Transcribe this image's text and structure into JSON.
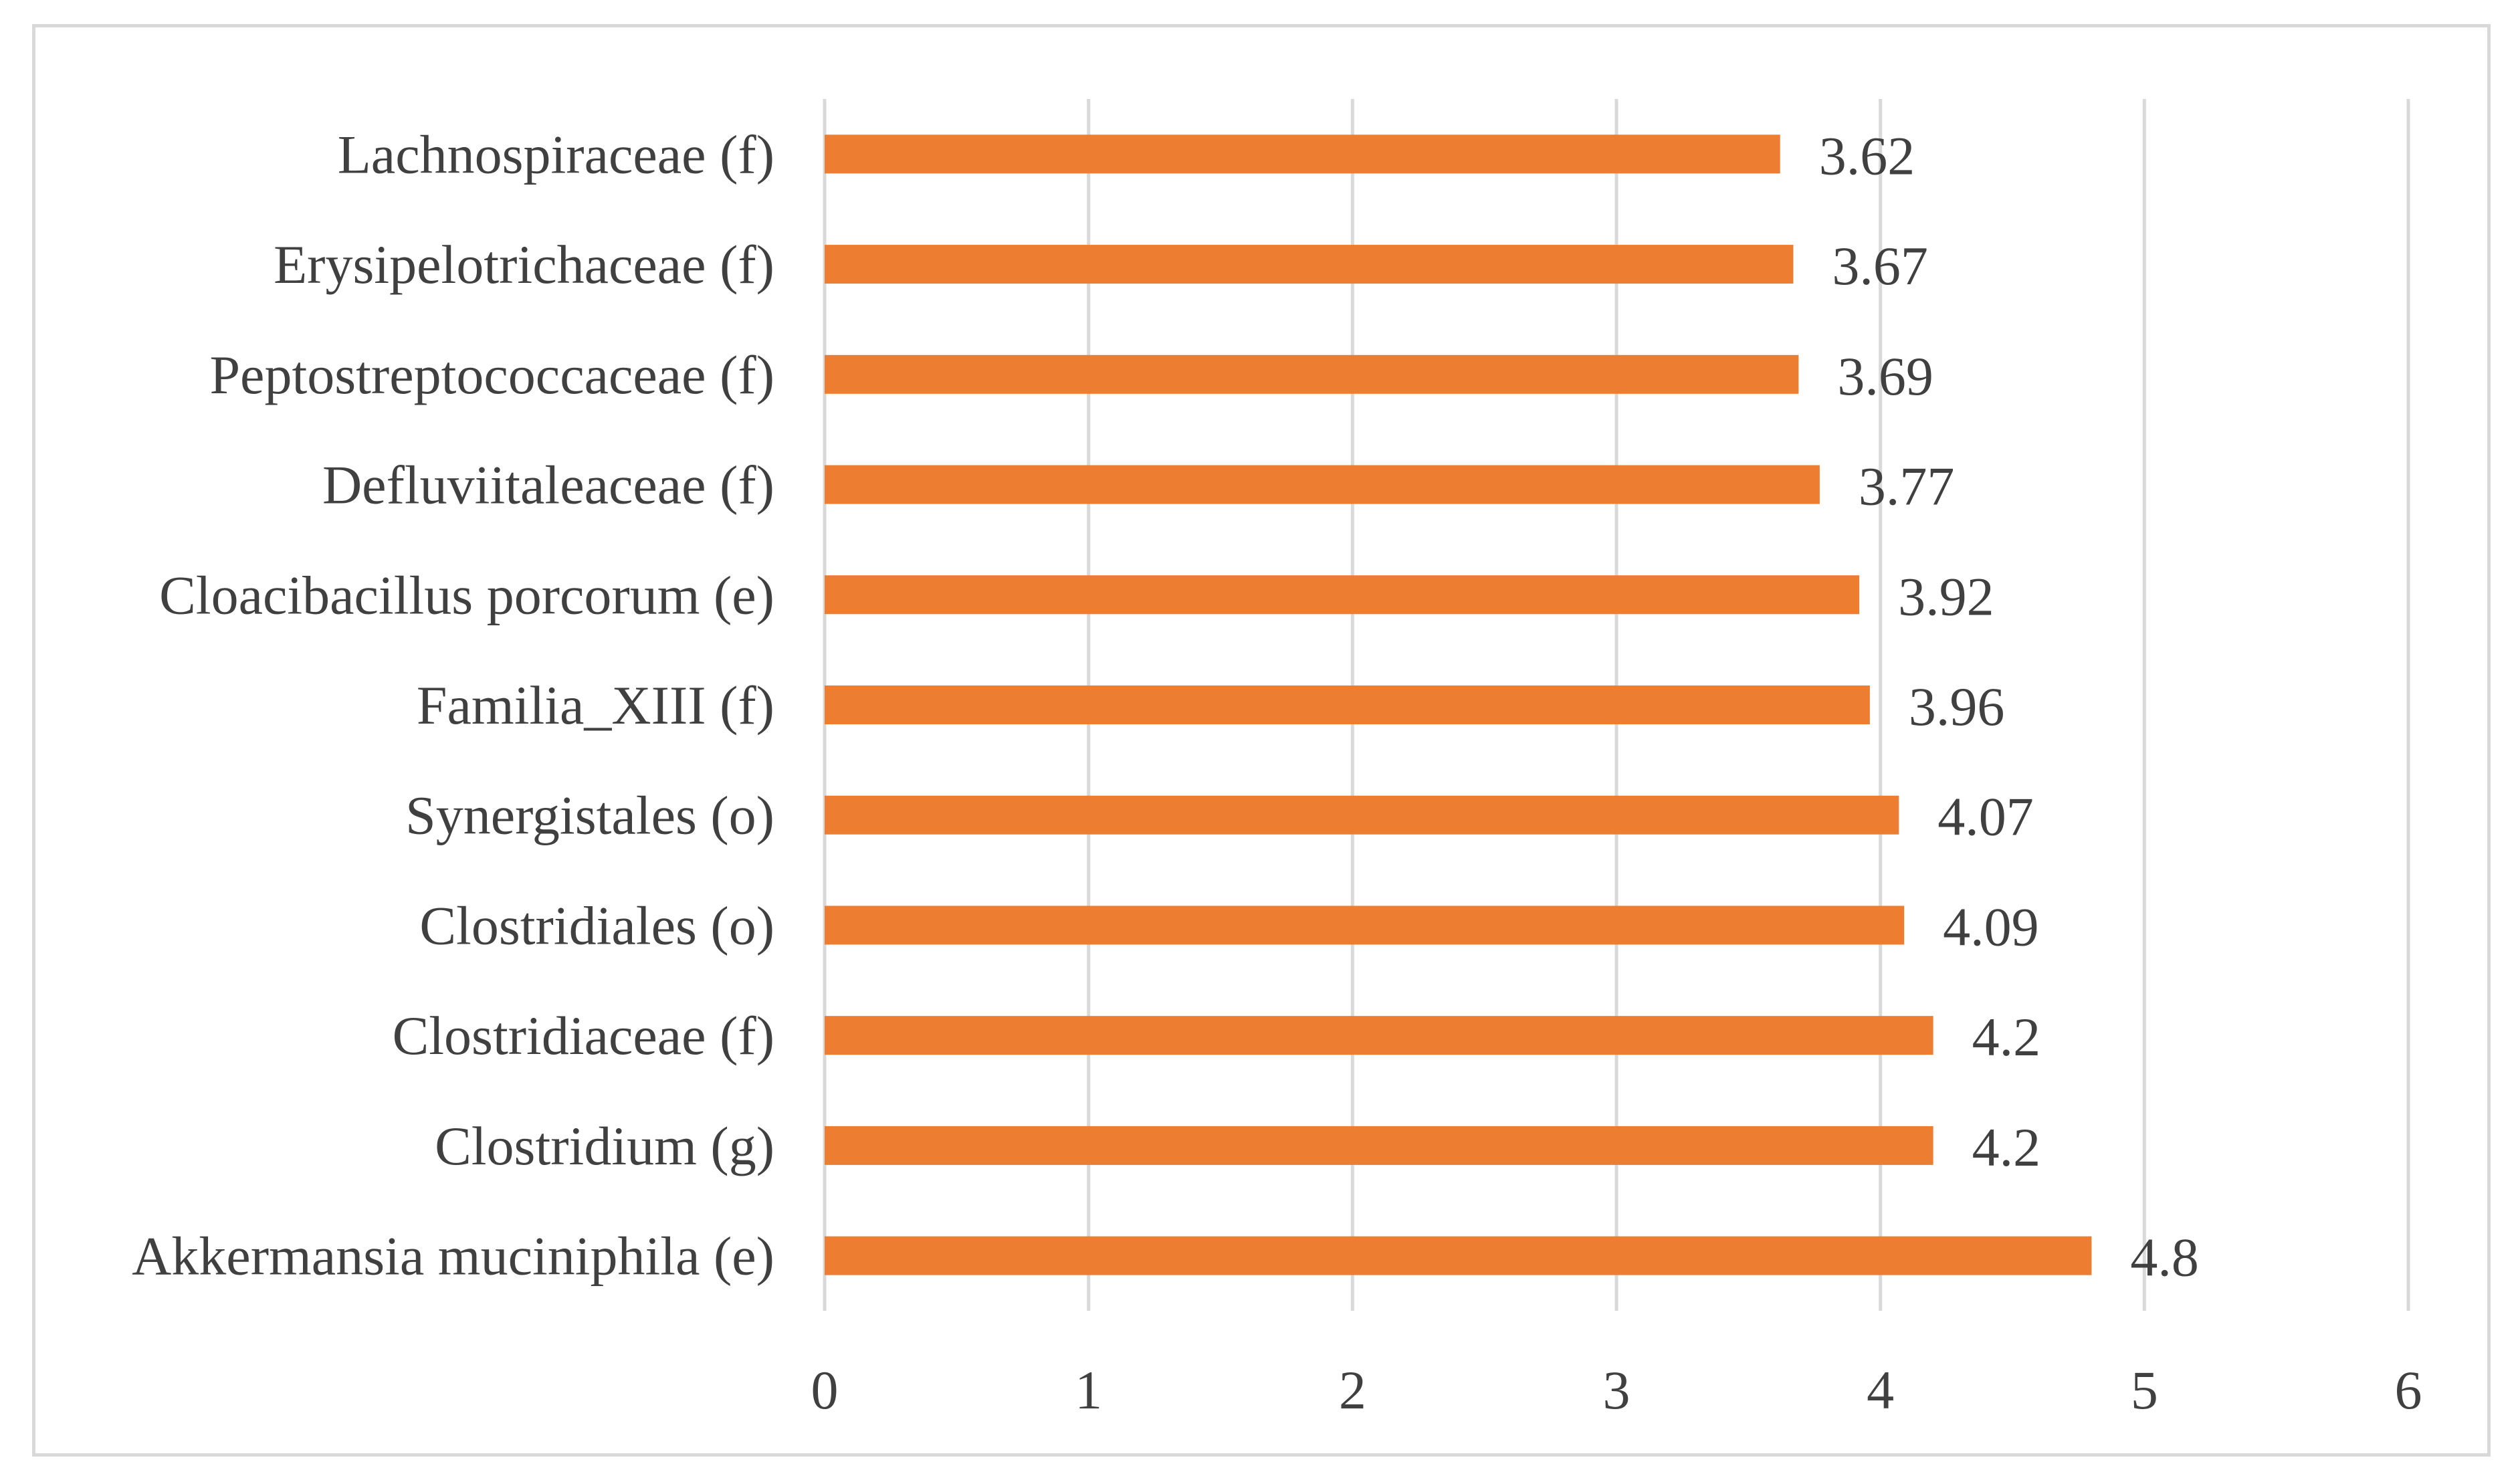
{
  "chart_data": {
    "type": "bar",
    "orientation": "horizontal",
    "title": "",
    "xlabel": "",
    "ylabel": "",
    "categories": [
      "Akkermansia muciniphila (e)",
      "Clostridium (g)",
      "Clostridiaceae (f)",
      "Clostridiales (o)",
      "Synergistales (o)",
      "Familia_XIII (f)",
      "Cloacibacillus porcorum (e)",
      "Defluviitaleaceae (f)",
      "Peptostreptococcaceae (f)",
      "Erysipelotrichaceae (f)",
      "Lachnospiraceae (f)"
    ],
    "values": [
      4.8,
      4.2,
      4.2,
      4.09,
      4.07,
      3.96,
      3.92,
      3.77,
      3.69,
      3.67,
      3.62
    ],
    "value_labels": [
      "4.8",
      "4.2",
      "4.2",
      "4.09",
      "4.07",
      "3.96",
      "3.92",
      "3.77",
      "3.69",
      "3.67",
      "3.62"
    ],
    "xlim": [
      0,
      6
    ],
    "xticks": [
      "0",
      "1",
      "2",
      "3",
      "4",
      "5",
      "6"
    ],
    "grid": "vertical",
    "legend": "none",
    "bar_color": "#ed7d31",
    "grid_color": "#d9d9d9",
    "text_color": "#404040"
  }
}
